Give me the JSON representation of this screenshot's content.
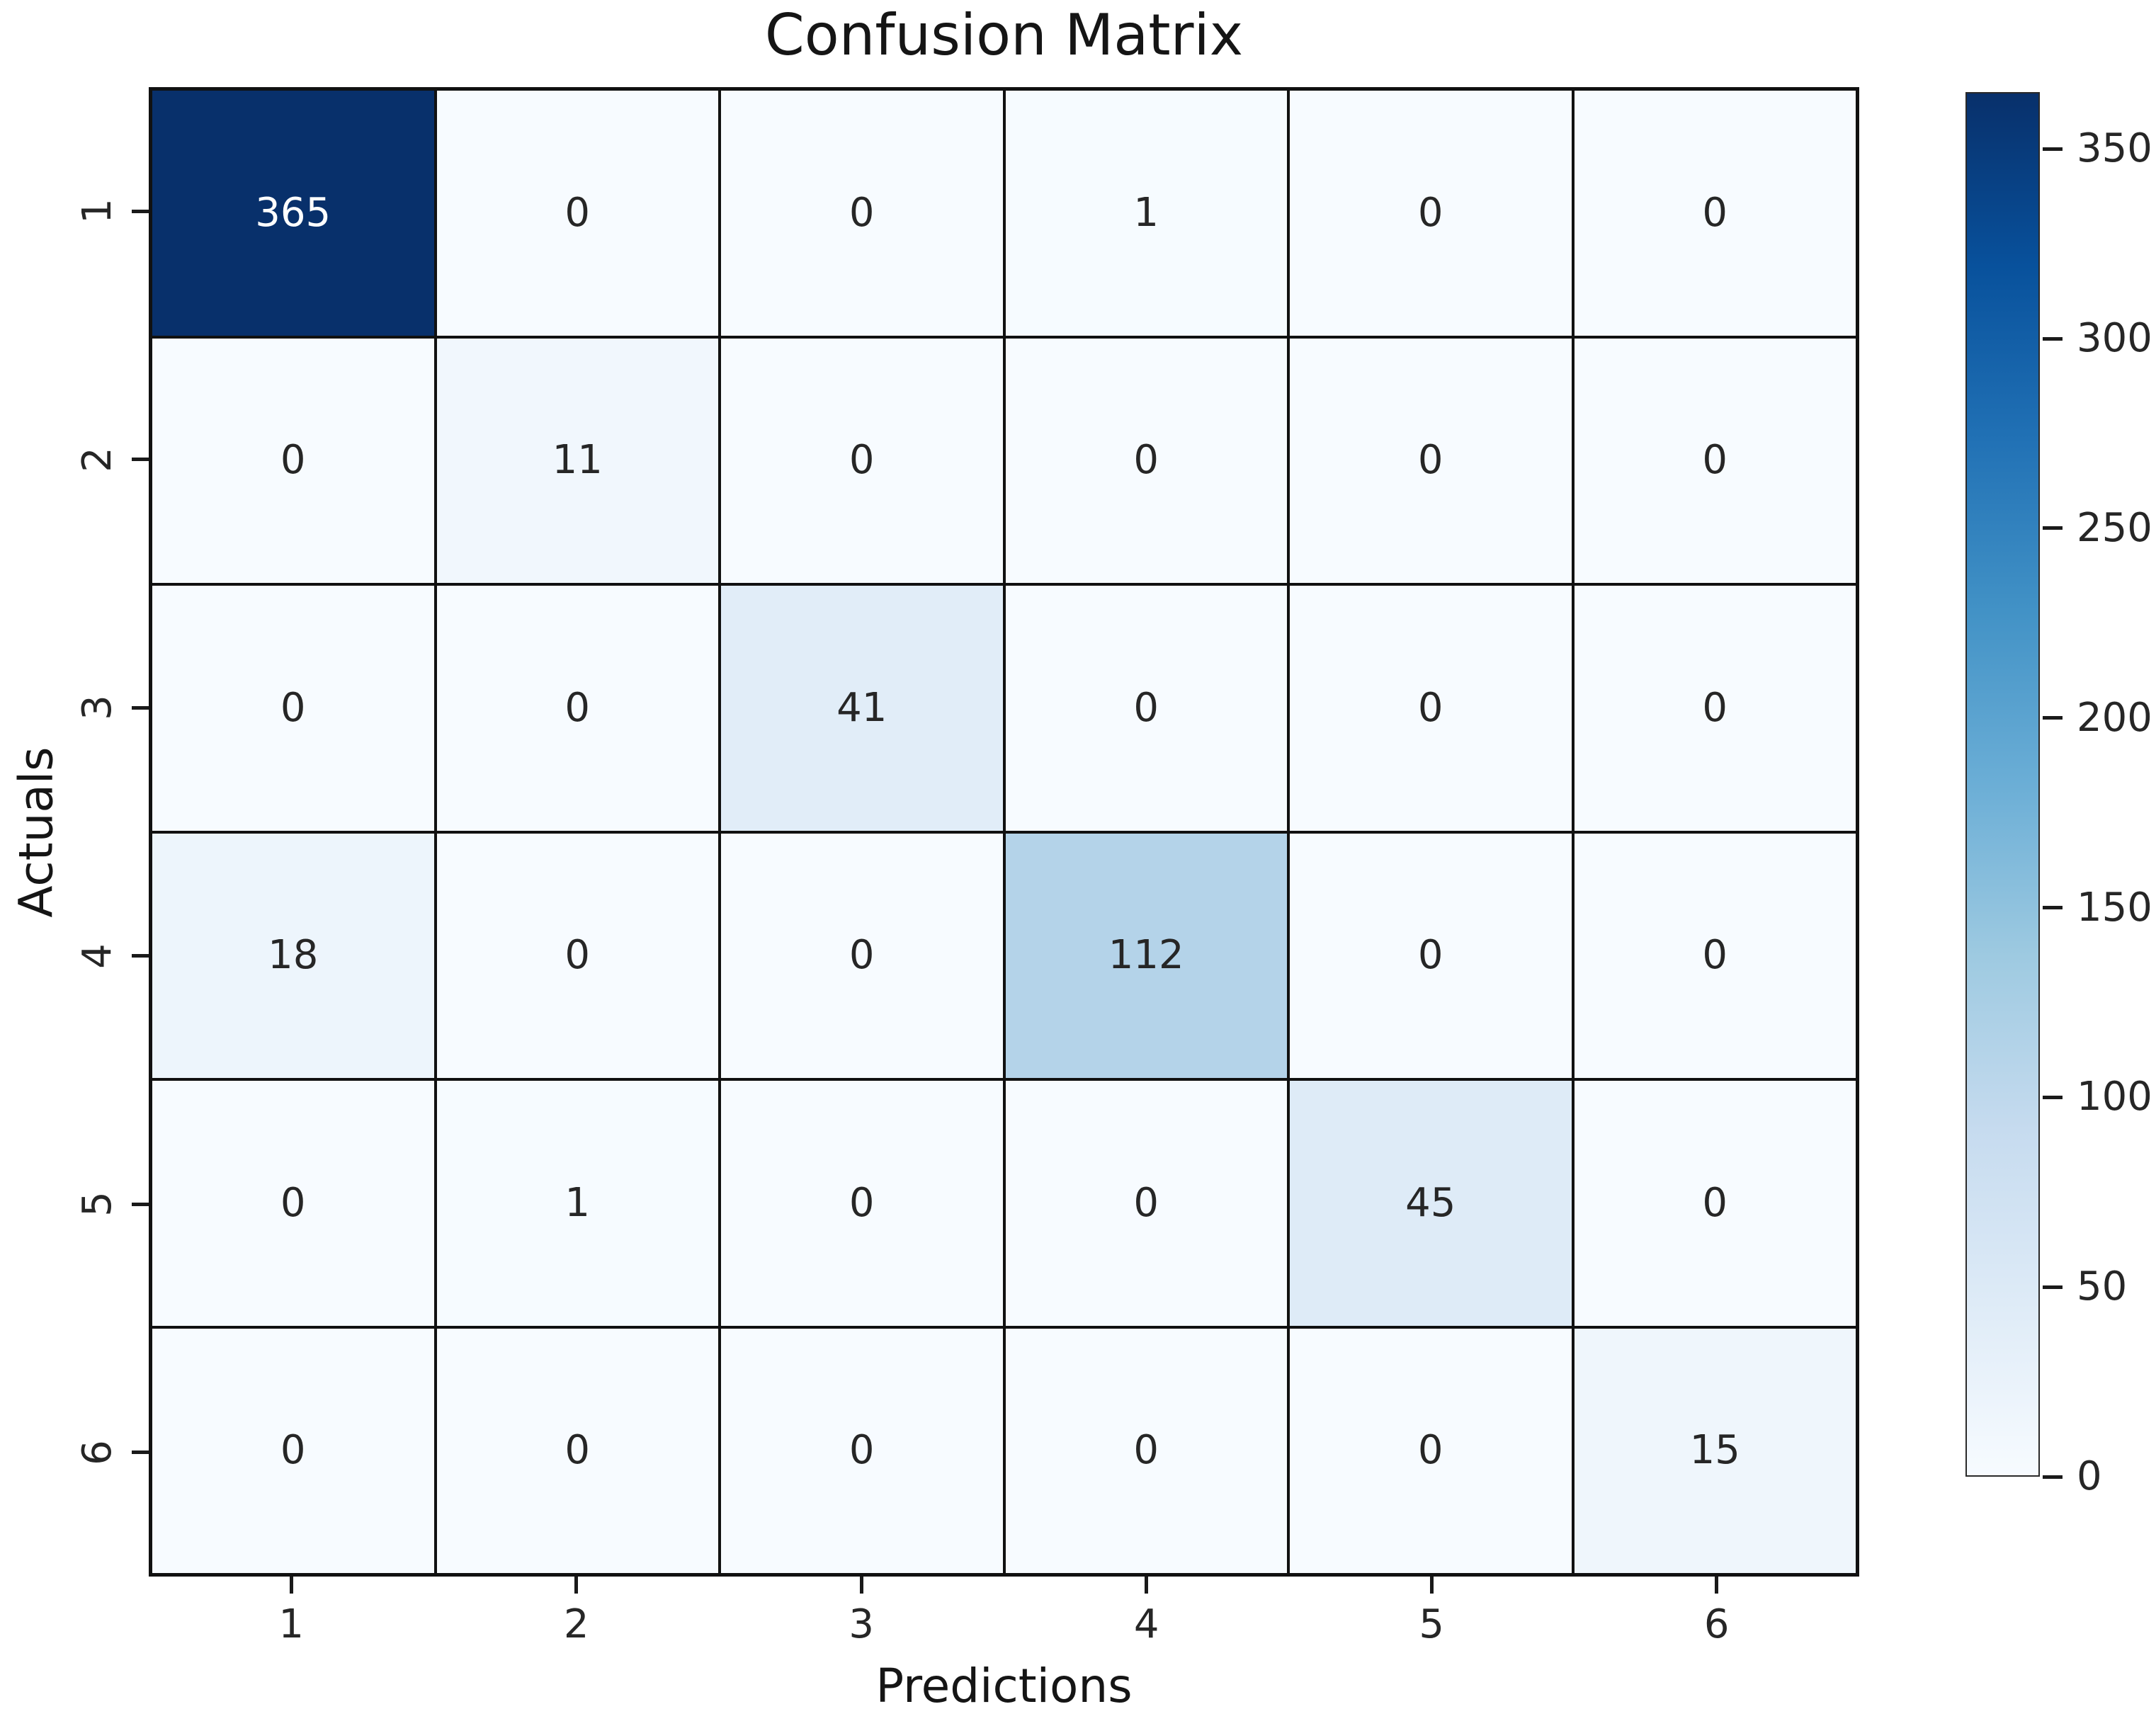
{
  "figure": {
    "background": "#ffffff",
    "title_color": "#151515",
    "tick_color": "#262626"
  },
  "chart_data": {
    "type": "heatmap",
    "title": "Confusion Matrix",
    "xlabel": "Predictions",
    "ylabel": "Actuals",
    "x_categories": [
      "1",
      "2",
      "3",
      "4",
      "5",
      "6"
    ],
    "y_categories": [
      "1",
      "2",
      "3",
      "4",
      "5",
      "6"
    ],
    "matrix": [
      [
        365,
        0,
        0,
        1,
        0,
        0
      ],
      [
        0,
        11,
        0,
        0,
        0,
        0
      ],
      [
        0,
        0,
        41,
        0,
        0,
        0
      ],
      [
        18,
        0,
        0,
        112,
        0,
        0
      ],
      [
        0,
        1,
        0,
        0,
        45,
        0
      ],
      [
        0,
        0,
        0,
        0,
        0,
        15
      ]
    ],
    "vmin": 0,
    "vmax": 365,
    "colormap": "Blues",
    "colormap_stops": [
      {
        "f": 0.0,
        "color": "#f7fbff"
      },
      {
        "f": 0.125,
        "color": "#deebf7"
      },
      {
        "f": 0.25,
        "color": "#c6dbef"
      },
      {
        "f": 0.375,
        "color": "#9ecae1"
      },
      {
        "f": 0.5,
        "color": "#6baed6"
      },
      {
        "f": 0.625,
        "color": "#4292c6"
      },
      {
        "f": 0.75,
        "color": "#2171b5"
      },
      {
        "f": 0.875,
        "color": "#08519c"
      },
      {
        "f": 1.0,
        "color": "#08306b"
      }
    ],
    "colorbar_ticks": [
      0,
      50,
      100,
      150,
      200,
      250,
      300,
      350
    ],
    "grid_line_color": "#111111",
    "annotation_color_light_bg": "#262626",
    "annotation_color_dark_bg": "#ffffff",
    "legend_position": "right-colorbar",
    "grid": "cell-borders-on"
  }
}
